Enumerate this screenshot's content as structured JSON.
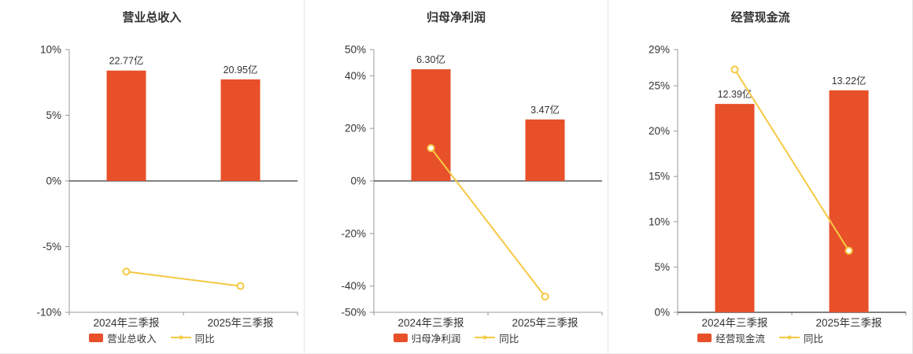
{
  "colors": {
    "bar": "#e8502a",
    "line": "#f5c943",
    "axis": "#999999",
    "zero_line": "#595959",
    "text": "#333333",
    "divider": "#e4e4e4"
  },
  "chart_data": [
    {
      "type": "bar+line",
      "title": "营业总收入",
      "categories": [
        "2024年三季报",
        "2025年三季报"
      ],
      "ylim": [
        -10,
        10
      ],
      "yticks": [
        {
          "value": 10,
          "label": "10%"
        },
        {
          "value": 5,
          "label": "5%"
        },
        {
          "value": 0,
          "label": "0%"
        },
        {
          "value": -5,
          "label": "-5%"
        },
        {
          "value": -10,
          "label": "-10%"
        }
      ],
      "bar_series": {
        "name": "营业总收入",
        "unit": "亿",
        "values": [
          22.77,
          20.95
        ],
        "value_labels": [
          "22.77亿",
          "20.95亿"
        ],
        "plotted_pct": [
          8.4,
          7.73
        ]
      },
      "line_series": {
        "name": "同比",
        "values_pct": [
          -6.9,
          -8.0
        ]
      }
    },
    {
      "type": "bar+line",
      "title": "归母净利润",
      "categories": [
        "2024年三季报",
        "2025年三季报"
      ],
      "ylim": [
        -50,
        50
      ],
      "yticks": [
        {
          "value": 50,
          "label": "50%"
        },
        {
          "value": 40,
          "label": "40%"
        },
        {
          "value": 20,
          "label": "20%"
        },
        {
          "value": 0,
          "label": "0%"
        },
        {
          "value": -20,
          "label": "-20%"
        },
        {
          "value": -40,
          "label": "-40%"
        },
        {
          "value": -50,
          "label": "-50%"
        }
      ],
      "bar_series": {
        "name": "归母净利润",
        "unit": "亿",
        "values": [
          6.3,
          3.47
        ],
        "value_labels": [
          "6.30亿",
          "3.47亿"
        ],
        "plotted_pct": [
          42.5,
          23.4
        ]
      },
      "line_series": {
        "name": "同比",
        "values_pct": [
          12.5,
          -44.0
        ]
      }
    },
    {
      "type": "bar+line",
      "title": "经营现金流",
      "categories": [
        "2024年三季报",
        "2025年三季报"
      ],
      "ylim": [
        0,
        29
      ],
      "yticks": [
        {
          "value": 29,
          "label": "29%"
        },
        {
          "value": 25,
          "label": "25%"
        },
        {
          "value": 20,
          "label": "20%"
        },
        {
          "value": 15,
          "label": "15%"
        },
        {
          "value": 10,
          "label": "10%"
        },
        {
          "value": 5,
          "label": "5%"
        },
        {
          "value": 0,
          "label": "0%"
        }
      ],
      "bar_series": {
        "name": "经营现金流",
        "unit": "亿",
        "values": [
          12.39,
          13.22
        ],
        "value_labels": [
          "12.39亿",
          "13.22亿"
        ],
        "plotted_pct": [
          23.0,
          24.5
        ]
      },
      "line_series": {
        "name": "同比",
        "values_pct": [
          26.8,
          6.8
        ]
      }
    }
  ]
}
